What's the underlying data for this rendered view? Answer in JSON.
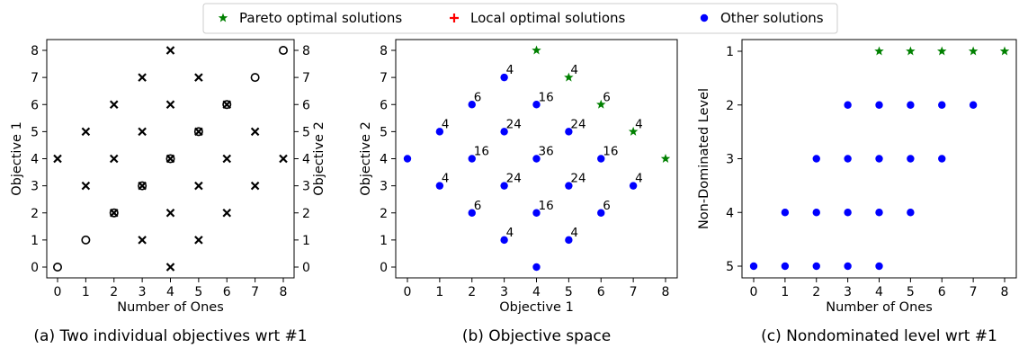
{
  "legend": {
    "items": [
      {
        "label": "Pareto optimal solutions",
        "marker": "star",
        "color": "#008000"
      },
      {
        "label": "Local optimal solutions",
        "marker": "plus",
        "color": "#ff0000"
      },
      {
        "label": "Other solutions",
        "marker": "dot",
        "color": "#0000ff"
      }
    ],
    "placement": "top-center"
  },
  "chart_data": [
    {
      "type": "scatter",
      "caption": "(a) Two individual objectives wrt #1",
      "xlabel": "Number of Ones",
      "ylabel": "Objective 1",
      "y2label": "Objective 2",
      "xlim": [
        0,
        8
      ],
      "ylim": [
        0,
        8
      ],
      "xticks": [
        0,
        1,
        2,
        3,
        4,
        5,
        6,
        7,
        8
      ],
      "yticks": [
        0,
        1,
        2,
        3,
        4,
        5,
        6,
        7,
        8
      ],
      "grid": false,
      "series": [
        {
          "name": "",
          "marker": "x",
          "color": "#000000",
          "points": [
            [
              0,
              4
            ],
            [
              1,
              3
            ],
            [
              1,
              5
            ],
            [
              2,
              2
            ],
            [
              2,
              4
            ],
            [
              2,
              6
            ],
            [
              3,
              1
            ],
            [
              3,
              3
            ],
            [
              3,
              5
            ],
            [
              3,
              7
            ],
            [
              4,
              0
            ],
            [
              4,
              2
            ],
            [
              4,
              4
            ],
            [
              4,
              6
            ],
            [
              4,
              8
            ],
            [
              5,
              1
            ],
            [
              5,
              3
            ],
            [
              5,
              5
            ],
            [
              5,
              7
            ],
            [
              6,
              2
            ],
            [
              6,
              4
            ],
            [
              6,
              6
            ],
            [
              7,
              3
            ],
            [
              7,
              5
            ],
            [
              8,
              4
            ]
          ]
        },
        {
          "name": "",
          "marker": "o",
          "color": "#000000",
          "points": [
            [
              0,
              0
            ],
            [
              1,
              1
            ],
            [
              2,
              2
            ],
            [
              3,
              3
            ],
            [
              4,
              4
            ],
            [
              5,
              5
            ],
            [
              6,
              6
            ],
            [
              7,
              7
            ],
            [
              8,
              8
            ]
          ]
        }
      ]
    },
    {
      "type": "scatter",
      "caption": "(b) Objective space",
      "xlabel": "Objective 1",
      "ylabel": "Objective 2",
      "xlim": [
        0,
        8
      ],
      "ylim": [
        0,
        8
      ],
      "xticks": [
        0,
        1,
        2,
        3,
        4,
        5,
        6,
        7,
        8
      ],
      "yticks": [
        0,
        1,
        2,
        3,
        4,
        5,
        6,
        7,
        8
      ],
      "grid": false,
      "series": [
        {
          "name": "Other solutions",
          "marker": "dot",
          "color": "#0000ff",
          "points": [
            [
              4,
              0,
              ""
            ],
            [
              3,
              1,
              "4"
            ],
            [
              5,
              1,
              "4"
            ],
            [
              2,
              2,
              "6"
            ],
            [
              4,
              2,
              "16"
            ],
            [
              6,
              2,
              "6"
            ],
            [
              1,
              3,
              "4"
            ],
            [
              3,
              3,
              "24"
            ],
            [
              5,
              3,
              "24"
            ],
            [
              7,
              3,
              "4"
            ],
            [
              0,
              4,
              ""
            ],
            [
              2,
              4,
              "16"
            ],
            [
              4,
              4,
              "36"
            ],
            [
              6,
              4,
              "16"
            ],
            [
              1,
              5,
              "4"
            ],
            [
              3,
              5,
              "24"
            ],
            [
              5,
              5,
              "24"
            ],
            [
              2,
              6,
              "6"
            ],
            [
              4,
              6,
              "16"
            ],
            [
              3,
              7,
              "4"
            ]
          ]
        },
        {
          "name": "Pareto optimal solutions",
          "marker": "star",
          "color": "#008000",
          "points": [
            [
              4,
              8,
              ""
            ],
            [
              5,
              7,
              "4"
            ],
            [
              6,
              6,
              "6"
            ],
            [
              7,
              5,
              "4"
            ],
            [
              8,
              4,
              ""
            ]
          ]
        }
      ]
    },
    {
      "type": "scatter",
      "caption": "(c) Nondominated level wrt #1",
      "xlabel": "Number of Ones",
      "ylabel": "Non-Dominated Level",
      "xlim": [
        0,
        8
      ],
      "ylim": [
        5,
        1
      ],
      "xticks": [
        0,
        1,
        2,
        3,
        4,
        5,
        6,
        7,
        8
      ],
      "yticks": [
        1,
        2,
        3,
        4,
        5
      ],
      "grid": false,
      "series": [
        {
          "name": "Pareto optimal solutions",
          "marker": "star",
          "color": "#008000",
          "points": [
            [
              4,
              1
            ],
            [
              5,
              1
            ],
            [
              6,
              1
            ],
            [
              7,
              1
            ],
            [
              8,
              1
            ]
          ]
        },
        {
          "name": "Other solutions",
          "marker": "dot",
          "color": "#0000ff",
          "points": [
            [
              3,
              2
            ],
            [
              4,
              2
            ],
            [
              5,
              2
            ],
            [
              6,
              2
            ],
            [
              7,
              2
            ],
            [
              2,
              3
            ],
            [
              3,
              3
            ],
            [
              4,
              3
            ],
            [
              5,
              3
            ],
            [
              6,
              3
            ],
            [
              1,
              4
            ],
            [
              2,
              4
            ],
            [
              3,
              4
            ],
            [
              4,
              4
            ],
            [
              5,
              4
            ],
            [
              0,
              5
            ],
            [
              1,
              5
            ],
            [
              2,
              5
            ],
            [
              3,
              5
            ],
            [
              4,
              5
            ]
          ]
        }
      ]
    }
  ]
}
